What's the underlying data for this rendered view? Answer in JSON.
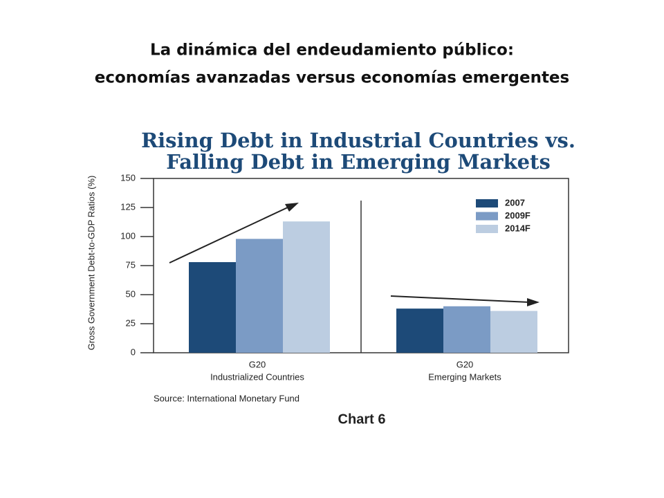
{
  "slide_title": [
    "La dinámica del endeudamiento público:",
    "economías avanzadas versus economías emergentes"
  ],
  "chart_data": {
    "type": "bar",
    "title": [
      "Rising Debt in Industrial Countries vs.",
      "Falling Debt in Emerging Markets"
    ],
    "y_label": "Gross Government Debt-to-GDP Ratios (%)",
    "categories": [
      [
        "G20",
        "Industrialized Countries"
      ],
      [
        "G20",
        "Emerging Markets"
      ]
    ],
    "series": [
      {
        "name": "2007",
        "color": "#1d4a78",
        "values": [
          78,
          38
        ]
      },
      {
        "name": "2009F",
        "color": "#7b9bc5",
        "values": [
          98,
          40
        ]
      },
      {
        "name": "2014F",
        "color": "#bccde1",
        "values": [
          113,
          36
        ]
      }
    ],
    "ylim": [
      0,
      150
    ],
    "yticks": [
      0,
      25,
      50,
      75,
      100,
      125,
      150
    ],
    "legend": "upper right",
    "source": "Source: International Monetary Fund",
    "caption": "Chart 6"
  }
}
